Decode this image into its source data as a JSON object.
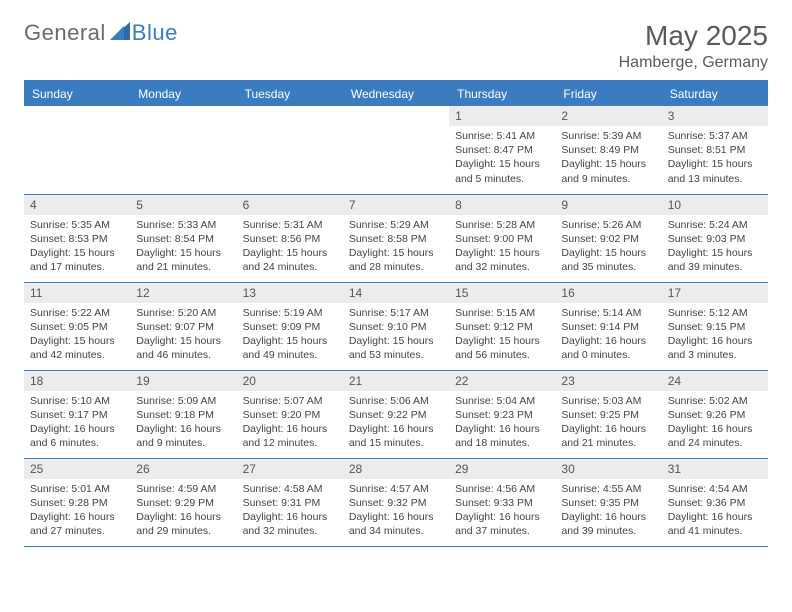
{
  "brand": {
    "part1": "General",
    "part2": "Blue"
  },
  "title": "May 2025",
  "location": "Hamberge, Germany",
  "colors": {
    "header_bg": "#3b7bbf",
    "header_text": "#ffffff",
    "daynum_bg": "#ececec",
    "text": "#444444",
    "brand_gray": "#6b6b6b",
    "brand_blue": "#3b7bbf",
    "border": "#3b7bbf",
    "background": "#ffffff"
  },
  "typography": {
    "title_fontsize": 28,
    "location_fontsize": 16,
    "header_fontsize": 12,
    "daynum_fontsize": 12,
    "body_fontsize": 10.5
  },
  "dayHeaders": [
    "Sunday",
    "Monday",
    "Tuesday",
    "Wednesday",
    "Thursday",
    "Friday",
    "Saturday"
  ],
  "weeks": [
    [
      null,
      null,
      null,
      null,
      {
        "n": "1",
        "sunrise": "5:41 AM",
        "sunset": "8:47 PM",
        "dl": "15 hours and 5 minutes."
      },
      {
        "n": "2",
        "sunrise": "5:39 AM",
        "sunset": "8:49 PM",
        "dl": "15 hours and 9 minutes."
      },
      {
        "n": "3",
        "sunrise": "5:37 AM",
        "sunset": "8:51 PM",
        "dl": "15 hours and 13 minutes."
      }
    ],
    [
      {
        "n": "4",
        "sunrise": "5:35 AM",
        "sunset": "8:53 PM",
        "dl": "15 hours and 17 minutes."
      },
      {
        "n": "5",
        "sunrise": "5:33 AM",
        "sunset": "8:54 PM",
        "dl": "15 hours and 21 minutes."
      },
      {
        "n": "6",
        "sunrise": "5:31 AM",
        "sunset": "8:56 PM",
        "dl": "15 hours and 24 minutes."
      },
      {
        "n": "7",
        "sunrise": "5:29 AM",
        "sunset": "8:58 PM",
        "dl": "15 hours and 28 minutes."
      },
      {
        "n": "8",
        "sunrise": "5:28 AM",
        "sunset": "9:00 PM",
        "dl": "15 hours and 32 minutes."
      },
      {
        "n": "9",
        "sunrise": "5:26 AM",
        "sunset": "9:02 PM",
        "dl": "15 hours and 35 minutes."
      },
      {
        "n": "10",
        "sunrise": "5:24 AM",
        "sunset": "9:03 PM",
        "dl": "15 hours and 39 minutes."
      }
    ],
    [
      {
        "n": "11",
        "sunrise": "5:22 AM",
        "sunset": "9:05 PM",
        "dl": "15 hours and 42 minutes."
      },
      {
        "n": "12",
        "sunrise": "5:20 AM",
        "sunset": "9:07 PM",
        "dl": "15 hours and 46 minutes."
      },
      {
        "n": "13",
        "sunrise": "5:19 AM",
        "sunset": "9:09 PM",
        "dl": "15 hours and 49 minutes."
      },
      {
        "n": "14",
        "sunrise": "5:17 AM",
        "sunset": "9:10 PM",
        "dl": "15 hours and 53 minutes."
      },
      {
        "n": "15",
        "sunrise": "5:15 AM",
        "sunset": "9:12 PM",
        "dl": "15 hours and 56 minutes."
      },
      {
        "n": "16",
        "sunrise": "5:14 AM",
        "sunset": "9:14 PM",
        "dl": "16 hours and 0 minutes."
      },
      {
        "n": "17",
        "sunrise": "5:12 AM",
        "sunset": "9:15 PM",
        "dl": "16 hours and 3 minutes."
      }
    ],
    [
      {
        "n": "18",
        "sunrise": "5:10 AM",
        "sunset": "9:17 PM",
        "dl": "16 hours and 6 minutes."
      },
      {
        "n": "19",
        "sunrise": "5:09 AM",
        "sunset": "9:18 PM",
        "dl": "16 hours and 9 minutes."
      },
      {
        "n": "20",
        "sunrise": "5:07 AM",
        "sunset": "9:20 PM",
        "dl": "16 hours and 12 minutes."
      },
      {
        "n": "21",
        "sunrise": "5:06 AM",
        "sunset": "9:22 PM",
        "dl": "16 hours and 15 minutes."
      },
      {
        "n": "22",
        "sunrise": "5:04 AM",
        "sunset": "9:23 PM",
        "dl": "16 hours and 18 minutes."
      },
      {
        "n": "23",
        "sunrise": "5:03 AM",
        "sunset": "9:25 PM",
        "dl": "16 hours and 21 minutes."
      },
      {
        "n": "24",
        "sunrise": "5:02 AM",
        "sunset": "9:26 PM",
        "dl": "16 hours and 24 minutes."
      }
    ],
    [
      {
        "n": "25",
        "sunrise": "5:01 AM",
        "sunset": "9:28 PM",
        "dl": "16 hours and 27 minutes."
      },
      {
        "n": "26",
        "sunrise": "4:59 AM",
        "sunset": "9:29 PM",
        "dl": "16 hours and 29 minutes."
      },
      {
        "n": "27",
        "sunrise": "4:58 AM",
        "sunset": "9:31 PM",
        "dl": "16 hours and 32 minutes."
      },
      {
        "n": "28",
        "sunrise": "4:57 AM",
        "sunset": "9:32 PM",
        "dl": "16 hours and 34 minutes."
      },
      {
        "n": "29",
        "sunrise": "4:56 AM",
        "sunset": "9:33 PM",
        "dl": "16 hours and 37 minutes."
      },
      {
        "n": "30",
        "sunrise": "4:55 AM",
        "sunset": "9:35 PM",
        "dl": "16 hours and 39 minutes."
      },
      {
        "n": "31",
        "sunrise": "4:54 AM",
        "sunset": "9:36 PM",
        "dl": "16 hours and 41 minutes."
      }
    ]
  ],
  "labels": {
    "sunrise": "Sunrise: ",
    "sunset": "Sunset: ",
    "daylight": "Daylight: "
  }
}
